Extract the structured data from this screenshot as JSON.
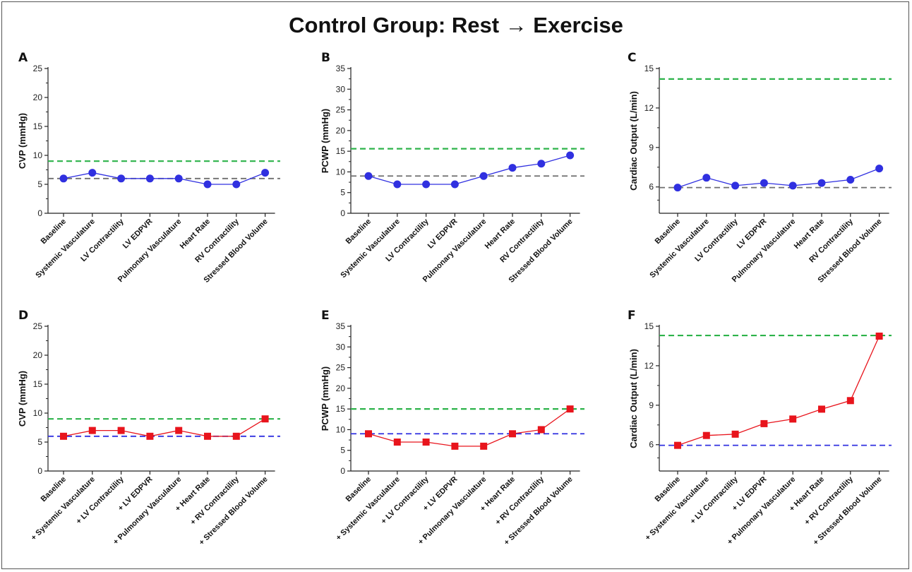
{
  "figure": {
    "title": "Control Group: Rest → Exercise",
    "colors": {
      "blue": "#1c1cf0",
      "red": "#e8141c",
      "green_dash": "#2db34a",
      "gray_dash": "#6e6e6e",
      "blue_dash": "#3030e0",
      "axis": "#222222"
    }
  },
  "chart_data": [
    {
      "panel": "A",
      "type": "line",
      "marker": "circle",
      "series_color": "blue",
      "ylabel": "CVP (mmHg)",
      "ylim": [
        0,
        25
      ],
      "yticks": [
        "0",
        "5",
        "10",
        "15",
        "20",
        "25"
      ],
      "categories": [
        "Baseline",
        "Systemic Vasculature",
        "LV Contractility",
        "LV EDPVR",
        "Pulmonary Vasculature",
        "Heart Rate",
        "RV Contractility",
        "Stressed Blood Volume"
      ],
      "values": [
        6,
        7,
        6,
        6,
        6,
        5,
        5,
        7
      ],
      "reference_lines": [
        {
          "value": 9,
          "color": "green"
        },
        {
          "value": 6,
          "color": "gray"
        }
      ]
    },
    {
      "panel": "B",
      "type": "line",
      "marker": "circle",
      "series_color": "blue",
      "ylabel": "PCWP (mmHg)",
      "ylim": [
        0,
        35
      ],
      "yticks": [
        "0",
        "5",
        "10",
        "15",
        "20",
        "25",
        "30",
        "35"
      ],
      "categories": [
        "Baseline",
        "Systemic Vasculature",
        "LV Contractility",
        "LV EDPVR",
        "Pulmonary Vasculature",
        "Heart Rate",
        "RV Contractility",
        "Stressed Blood Volume"
      ],
      "values": [
        9,
        7,
        7,
        7,
        9,
        11,
        12,
        14
      ],
      "reference_lines": [
        {
          "value": 15.6,
          "color": "green"
        },
        {
          "value": 9,
          "color": "gray"
        }
      ]
    },
    {
      "panel": "C",
      "type": "line",
      "marker": "circle",
      "series_color": "blue",
      "ylabel": "Cardiac Output (L/min)",
      "ylim": [
        4,
        15
      ],
      "yticks": [
        "6",
        "9",
        "12",
        "15"
      ],
      "ytick_values": [
        6,
        9,
        12,
        15
      ],
      "categories": [
        "Baseline",
        "Systemic Vasculature",
        "LV Contractility",
        "LV EDPVR",
        "Pulmonary Vasculature",
        "Heart Rate",
        "RV Contractility",
        "Stressed Blood Volume"
      ],
      "values": [
        5.95,
        6.7,
        6.1,
        6.3,
        6.1,
        6.3,
        6.55,
        7.4
      ],
      "reference_lines": [
        {
          "value": 14.2,
          "color": "green"
        },
        {
          "value": 5.95,
          "color": "gray"
        }
      ]
    },
    {
      "panel": "D",
      "type": "line",
      "marker": "square",
      "series_color": "red",
      "ylabel": "CVP (mmHg)",
      "ylim": [
        0,
        25
      ],
      "yticks": [
        "0",
        "5",
        "10",
        "15",
        "20",
        "25"
      ],
      "categories": [
        "Baseline",
        "+ Systemic Vasculature",
        "+ LV Contractility",
        "+ LV EDPVR",
        "+ Pulmonary Vasculature",
        "+ Heart Rate",
        "+ RV Contractility",
        "+ Stressed Blood Volume"
      ],
      "values": [
        6,
        7,
        7,
        6,
        7,
        6,
        6,
        9
      ],
      "reference_lines": [
        {
          "value": 9,
          "color": "green"
        },
        {
          "value": 6,
          "color": "blue"
        }
      ]
    },
    {
      "panel": "E",
      "type": "line",
      "marker": "square",
      "series_color": "red",
      "ylabel": "PCWP (mmHg)",
      "ylim": [
        0,
        35
      ],
      "yticks": [
        "0",
        "5",
        "10",
        "15",
        "20",
        "25",
        "30",
        "35"
      ],
      "categories": [
        "Baseline",
        "+ Systemic Vasculature",
        "+ LV Contractility",
        "+ LV EDPVR",
        "+ Pulmonary Vasculature",
        "+ Heart Rate",
        "+ RV Contractility",
        "+ Stressed Blood Volume"
      ],
      "values": [
        9,
        7,
        7,
        6,
        6,
        9,
        10,
        15
      ],
      "reference_lines": [
        {
          "value": 15,
          "color": "green"
        },
        {
          "value": 9,
          "color": "blue"
        }
      ]
    },
    {
      "panel": "F",
      "type": "line",
      "marker": "square",
      "series_color": "red",
      "ylabel": "Cardiac Output (L/min)",
      "ylim": [
        4,
        15
      ],
      "yticks": [
        "6",
        "9",
        "12",
        "15"
      ],
      "ytick_values": [
        6,
        9,
        12,
        15
      ],
      "categories": [
        "Baseline",
        "+ Systemic Vasculature",
        "+ LV Contractility",
        "+ LV EDPVR",
        "+ Pulmonary Vasculature",
        "+ Heart Rate",
        "+ RV Contractility",
        "+ Stressed Blood Volume"
      ],
      "values": [
        5.95,
        6.7,
        6.8,
        7.6,
        7.95,
        8.7,
        9.35,
        14.25
      ],
      "reference_lines": [
        {
          "value": 14.3,
          "color": "green"
        },
        {
          "value": 5.95,
          "color": "blue"
        }
      ]
    }
  ]
}
